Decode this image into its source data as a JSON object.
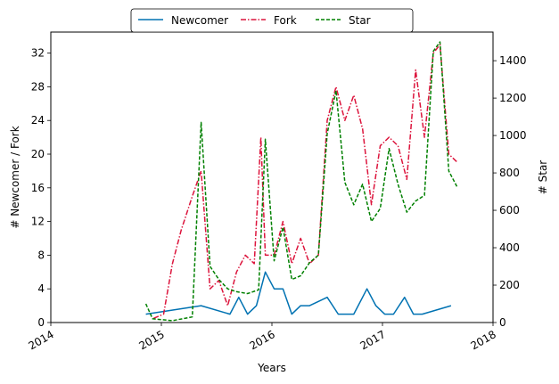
{
  "chart_data": {
    "type": "line",
    "xlabel": "Years",
    "ylabel_left": "# Newcomer / Fork",
    "ylabel_right": "# Star",
    "xlim": [
      2014.0,
      2018.0
    ],
    "ylim_left": [
      0,
      34.5
    ],
    "ylim_right": [
      0,
      1553
    ],
    "x_ticks": [
      2014,
      2015,
      2016,
      2017,
      2018
    ],
    "x_tick_labels": [
      "2014",
      "2015",
      "2016",
      "2017",
      "2018"
    ],
    "y_left_ticks": [
      0,
      4,
      8,
      12,
      16,
      20,
      24,
      28,
      32
    ],
    "y_left_tick_labels": [
      "0",
      "4",
      "8",
      "12",
      "16",
      "20",
      "24",
      "28",
      "32"
    ],
    "y_right_ticks": [
      0,
      200,
      400,
      600,
      800,
      1000,
      1200,
      1400
    ],
    "y_right_tick_labels": [
      "0",
      "200",
      "400",
      "600",
      "800",
      "1000",
      "1200",
      "1400"
    ],
    "legend": {
      "placement": "top-center",
      "ncol": 3
    },
    "series": [
      {
        "name": "Newcomer",
        "axis": "left",
        "color": "#0072B2",
        "style": "solid",
        "x": [
          2014.86,
          2015.36,
          2015.62,
          2015.7,
          2015.78,
          2015.86,
          2015.94,
          2016.02,
          2016.1,
          2016.18,
          2016.26,
          2016.34,
          2016.5,
          2016.6,
          2016.74,
          2016.86,
          2016.94,
          2017.02,
          2017.1,
          2017.2,
          2017.28,
          2017.36,
          2017.62
        ],
        "y": [
          1,
          2,
          1,
          3,
          1,
          2,
          6,
          4,
          4,
          1,
          2,
          2,
          3,
          1,
          1,
          4,
          2,
          1,
          1,
          3,
          1,
          1,
          2
        ]
      },
      {
        "name": "Fork",
        "axis": "left",
        "color": "#DC143C",
        "style": "dashdot",
        "x": [
          2014.93,
          2015.02,
          2015.1,
          2015.18,
          2015.28,
          2015.36,
          2015.44,
          2015.52,
          2015.6,
          2015.68,
          2015.76,
          2015.84,
          2015.9,
          2015.94,
          2016.02,
          2016.1,
          2016.18,
          2016.26,
          2016.34,
          2016.42,
          2016.5,
          2016.58,
          2016.66,
          2016.74,
          2016.82,
          2016.9,
          2016.98,
          2017.06,
          2017.14,
          2017.22,
          2017.3,
          2017.38,
          2017.46,
          2017.52,
          2017.6,
          2017.68
        ],
        "y": [
          0.5,
          1,
          7,
          11,
          15,
          18,
          4,
          5,
          2,
          6,
          8,
          7,
          22,
          8,
          8,
          12,
          7,
          10,
          7,
          8,
          24,
          28,
          24,
          27,
          23,
          14,
          21,
          22,
          21,
          17,
          30,
          22,
          32,
          33,
          20,
          19
        ]
      },
      {
        "name": "Star",
        "axis": "right",
        "color": "#008000",
        "style": "dashed",
        "x": [
          2014.86,
          2014.92,
          2015.1,
          2015.28,
          2015.36,
          2015.44,
          2015.52,
          2015.6,
          2015.68,
          2015.78,
          2015.88,
          2015.94,
          2016.02,
          2016.1,
          2016.18,
          2016.26,
          2016.34,
          2016.42,
          2016.5,
          2016.58,
          2016.66,
          2016.74,
          2016.82,
          2016.9,
          2016.98,
          2017.06,
          2017.14,
          2017.22,
          2017.3,
          2017.38,
          2017.46,
          2017.52,
          2017.6,
          2017.68
        ],
        "y": [
          100,
          20,
          10,
          30,
          1070,
          300,
          230,
          180,
          165,
          155,
          175,
          980,
          330,
          510,
          230,
          250,
          320,
          360,
          1010,
          1240,
          750,
          630,
          740,
          540,
          610,
          930,
          740,
          590,
          650,
          680,
          1450,
          1500,
          810,
          720
        ]
      }
    ]
  }
}
